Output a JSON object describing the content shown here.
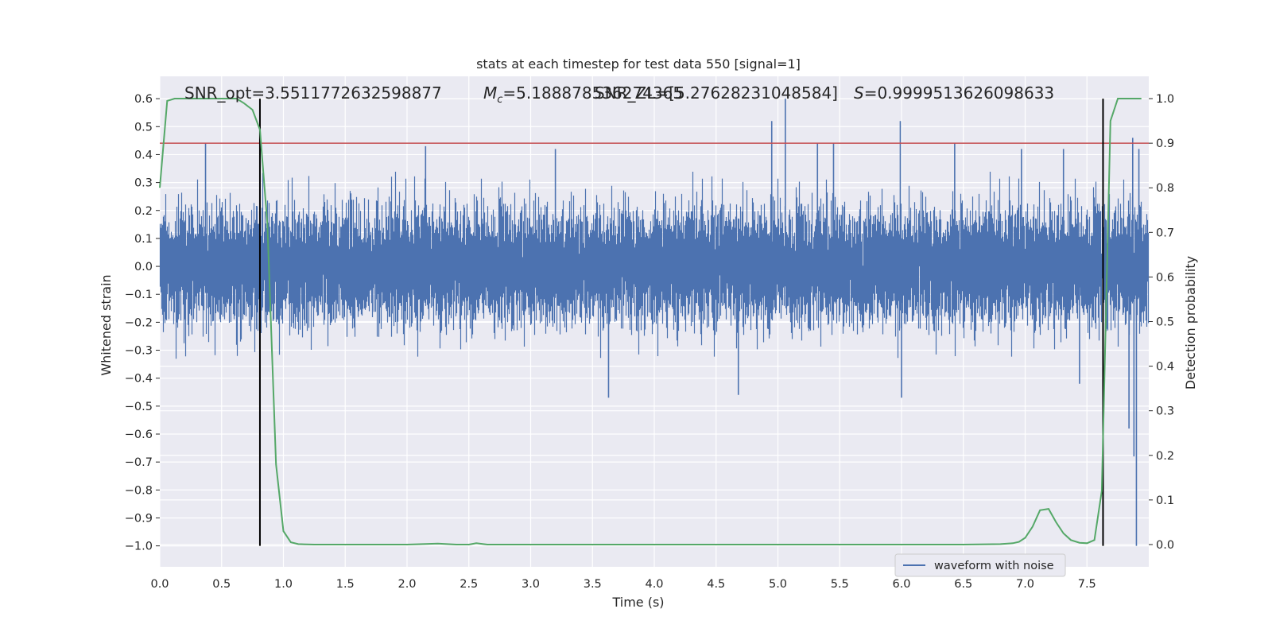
{
  "chart_data": {
    "type": "line",
    "title": "stats at each timestep for test data 550 [signal=1]",
    "xlabel": "Time (s)",
    "ylabel": "Whitened strain",
    "y2label": "Detection probability",
    "xlim": [
      0.0,
      8.0
    ],
    "ylim": [
      -1.075,
      0.68
    ],
    "y2lim": [
      -0.05,
      1.05
    ],
    "xticks": [
      "0.0",
      "0.5",
      "1.0",
      "1.5",
      "2.0",
      "2.5",
      "3.0",
      "3.5",
      "4.0",
      "4.5",
      "5.0",
      "5.5",
      "6.0",
      "6.5",
      "7.0",
      "7.5"
    ],
    "xtick_values": [
      0.0,
      0.5,
      1.0,
      1.5,
      2.0,
      2.5,
      3.0,
      3.5,
      4.0,
      4.5,
      5.0,
      5.5,
      6.0,
      6.5,
      7.0,
      7.5
    ],
    "yticks": [
      "0.6",
      "0.5",
      "0.4",
      "0.3",
      "0.2",
      "0.1",
      "0.0",
      "−0.1",
      "−0.2",
      "−0.3",
      "−0.4",
      "−0.5",
      "−0.6",
      "−0.7",
      "−0.8",
      "−0.9",
      "−1.0"
    ],
    "ytick_values": [
      0.6,
      0.5,
      0.4,
      0.3,
      0.2,
      0.1,
      0.0,
      -0.1,
      -0.2,
      -0.3,
      -0.4,
      -0.5,
      -0.6,
      -0.7,
      -0.8,
      -0.9,
      -1.0
    ],
    "y2ticks": [
      "1.0",
      "0.9",
      "0.8",
      "0.7",
      "0.6",
      "0.5",
      "0.4",
      "0.3",
      "0.2",
      "0.1",
      "0.0"
    ],
    "y2tick_values": [
      1.0,
      0.9,
      0.8,
      0.7,
      0.6,
      0.5,
      0.4,
      0.3,
      0.2,
      0.1,
      0.0
    ],
    "grid": true,
    "legend": {
      "entries": [
        "waveform with noise"
      ],
      "placement": "lower-right"
    },
    "annotations": {
      "snr_opt": "SNR_opt=3.5511772632598877",
      "mc": "=5.188878536274365",
      "mc_symbol": "M",
      "mc_sub": "c",
      "snr_zl": "SNR_ZL=[5.27628231048584]",
      "s": "=0.9999513626098633",
      "s_symbol": "S"
    },
    "threshold_line": {
      "y2": 0.9,
      "color": "#c44e52"
    },
    "vertical_lines": [
      0.81,
      7.63
    ],
    "colors": {
      "waveform": "#4c72b0",
      "probability": "#55a868",
      "threshold": "#c44e52",
      "vline": "#000000",
      "background": "#eaeaf2",
      "grid": "#ffffff"
    },
    "series": [
      {
        "name": "waveform with noise",
        "axis": "left",
        "description_type": "noise",
        "sample_rate": 2048,
        "duration": 8.0,
        "noise_sigma": 0.095,
        "envelope_pos": 0.34,
        "envelope_neg": -0.36,
        "peaks": [
          {
            "x": 0.37,
            "y": 0.44
          },
          {
            "x": 2.15,
            "y": 0.43
          },
          {
            "x": 3.2,
            "y": 0.42
          },
          {
            "x": 3.63,
            "y": -0.47
          },
          {
            "x": 4.68,
            "y": -0.46
          },
          {
            "x": 4.95,
            "y": 0.52
          },
          {
            "x": 5.06,
            "y": 0.6
          },
          {
            "x": 5.32,
            "y": 0.44
          },
          {
            "x": 5.45,
            "y": 0.44
          },
          {
            "x": 5.99,
            "y": 0.52
          },
          {
            "x": 6.0,
            "y": -0.47
          },
          {
            "x": 6.43,
            "y": 0.44
          },
          {
            "x": 6.97,
            "y": 0.42
          },
          {
            "x": 7.31,
            "y": 0.42
          },
          {
            "x": 7.44,
            "y": -0.42
          },
          {
            "x": 7.87,
            "y": 0.46
          },
          {
            "x": 7.92,
            "y": 0.42
          },
          {
            "x": 7.84,
            "y": -0.58
          },
          {
            "x": 7.88,
            "y": -0.68
          },
          {
            "x": 7.9,
            "y": -1.0
          }
        ]
      },
      {
        "name": "",
        "axis": "right",
        "x": [
          0.0,
          0.06,
          0.12,
          0.18,
          0.25,
          0.31,
          0.37,
          0.44,
          0.5,
          0.56,
          0.62,
          0.68,
          0.75,
          0.81,
          0.87,
          0.94,
          1.0,
          1.06,
          1.12,
          1.25,
          1.5,
          2.0,
          2.25,
          2.4,
          2.5,
          2.56,
          2.65,
          2.75,
          3.0,
          4.0,
          5.0,
          6.0,
          6.5,
          6.8,
          6.9,
          6.95,
          7.0,
          7.06,
          7.12,
          7.19,
          7.25,
          7.31,
          7.37,
          7.44,
          7.5,
          7.56,
          7.62,
          7.69,
          7.75,
          7.81,
          7.87,
          7.94
        ],
        "y": [
          0.8,
          0.995,
          1.0,
          1.0,
          1.0,
          1.0,
          1.0,
          1.0,
          1.0,
          1.0,
          1.0,
          0.99,
          0.975,
          0.93,
          0.72,
          0.18,
          0.03,
          0.005,
          0.001,
          0.0,
          0.0,
          0.0,
          0.002,
          0.0,
          0.0,
          0.003,
          0.0,
          0.0,
          0.0,
          0.0,
          0.0,
          0.0,
          0.0,
          0.001,
          0.003,
          0.006,
          0.015,
          0.04,
          0.077,
          0.08,
          0.05,
          0.025,
          0.01,
          0.004,
          0.003,
          0.01,
          0.12,
          0.95,
          1.0,
          1.0,
          1.0,
          1.0
        ]
      }
    ]
  }
}
